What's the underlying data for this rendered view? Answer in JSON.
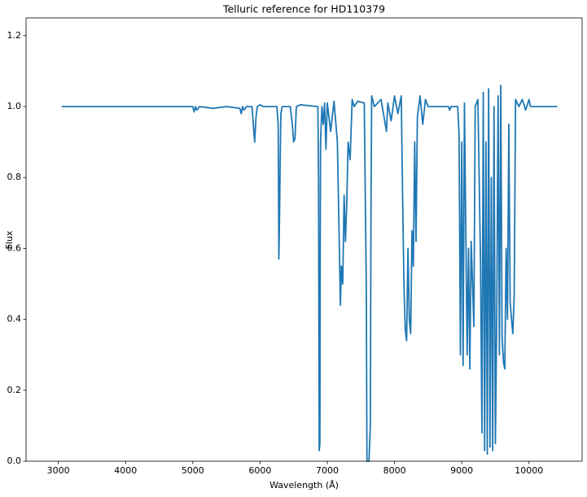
{
  "chart_data": {
    "type": "line",
    "title": "Telluric reference for HD110379",
    "x_label": "Wavelength (Å)",
    "y_label": "Flux",
    "xlim": [
      2520,
      10790
    ],
    "ylim": [
      0,
      1.25
    ],
    "xticks": [
      3000,
      4000,
      5000,
      6000,
      7000,
      8000,
      9000,
      10000
    ],
    "yticks": [
      {
        "value": 0,
        "label": "0.0"
      },
      {
        "value": 0.2,
        "label": "0.2"
      },
      {
        "value": 0.4,
        "label": "0.4"
      },
      {
        "value": 0.6,
        "label": "0.6"
      },
      {
        "value": 0.8,
        "label": "0.8"
      },
      {
        "value": 1,
        "label": "1.0"
      },
      {
        "value": 1.2,
        "label": "1.2"
      }
    ],
    "color": "#1f77b4",
    "x": [
      3050,
      5000,
      5020,
      5040,
      5060,
      5100,
      5300,
      5500,
      5700,
      5720,
      5740,
      5760,
      5800,
      5880,
      5900,
      5920,
      5940,
      5960,
      6000,
      6050,
      6250,
      6270,
      6280,
      6290,
      6300,
      6310,
      6330,
      6450,
      6480,
      6500,
      6520,
      6540,
      6600,
      6860,
      6870,
      6880,
      6890,
      6895,
      6900,
      6920,
      6940,
      6960,
      6980,
      7000,
      7050,
      7100,
      7150,
      7180,
      7195,
      7210,
      7230,
      7250,
      7270,
      7290,
      7310,
      7340,
      7370,
      7400,
      7450,
      7550,
      7580,
      7590,
      7620,
      7640,
      7650,
      7660,
      7700,
      7800,
      7880,
      7900,
      7950,
      8000,
      8050,
      8100,
      8120,
      8140,
      8160,
      8180,
      8200,
      8220,
      8240,
      8260,
      8280,
      8300,
      8320,
      8340,
      8380,
      8420,
      8460,
      8500,
      8520,
      8800,
      8820,
      8840,
      8940,
      8960,
      8980,
      9000,
      9020,
      9040,
      9080,
      9100,
      9120,
      9140,
      9160,
      9180,
      9200,
      9240,
      9280,
      9300,
      9320,
      9340,
      9360,
      9380,
      9400,
      9420,
      9440,
      9460,
      9480,
      9500,
      9520,
      9540,
      9560,
      9580,
      9600,
      9620,
      9640,
      9660,
      9680,
      9700,
      9720,
      9740,
      9760,
      9780,
      9800,
      9850,
      9900,
      9950,
      10000,
      10020,
      10420
    ],
    "values": [
      1.0,
      1.0,
      0.985,
      1.0,
      0.99,
      1.0,
      0.995,
      1.0,
      0.995,
      0.98,
      1.0,
      0.99,
      1.0,
      1.0,
      0.95,
      0.9,
      0.97,
      1.0,
      1.005,
      1.0,
      1.0,
      0.95,
      0.57,
      0.7,
      0.85,
      0.98,
      1.0,
      1.0,
      0.95,
      0.9,
      0.91,
      1.0,
      1.005,
      1.0,
      0.8,
      0.03,
      0.05,
      0.6,
      0.9,
      1.0,
      0.95,
      1.01,
      0.88,
      1.01,
      0.93,
      1.015,
      0.9,
      0.6,
      0.44,
      0.55,
      0.5,
      0.75,
      0.62,
      0.73,
      0.9,
      0.85,
      1.02,
      1.0,
      1.015,
      1.01,
      0.5,
      0.0,
      0.0,
      0.1,
      0.7,
      1.03,
      1.0,
      1.02,
      0.93,
      1.01,
      0.96,
      1.03,
      0.98,
      1.03,
      0.75,
      0.5,
      0.37,
      0.34,
      0.6,
      0.4,
      0.36,
      0.65,
      0.55,
      0.9,
      0.62,
      0.97,
      1.03,
      0.95,
      1.02,
      1.0,
      1.0,
      1.0,
      0.99,
      1.0,
      1.0,
      0.92,
      0.3,
      0.9,
      0.27,
      1.01,
      0.3,
      0.6,
      0.26,
      0.62,
      0.5,
      0.38,
      1.0,
      1.02,
      0.55,
      0.08,
      1.04,
      0.03,
      0.9,
      0.02,
      1.05,
      0.04,
      0.8,
      0.03,
      1.0,
      0.05,
      0.4,
      1.03,
      0.3,
      1.06,
      0.35,
      0.28,
      0.26,
      0.6,
      0.4,
      0.95,
      0.45,
      0.4,
      0.36,
      0.47,
      1.02,
      1.0,
      1.02,
      0.99,
      1.02,
      1.0,
      1.0
    ]
  }
}
